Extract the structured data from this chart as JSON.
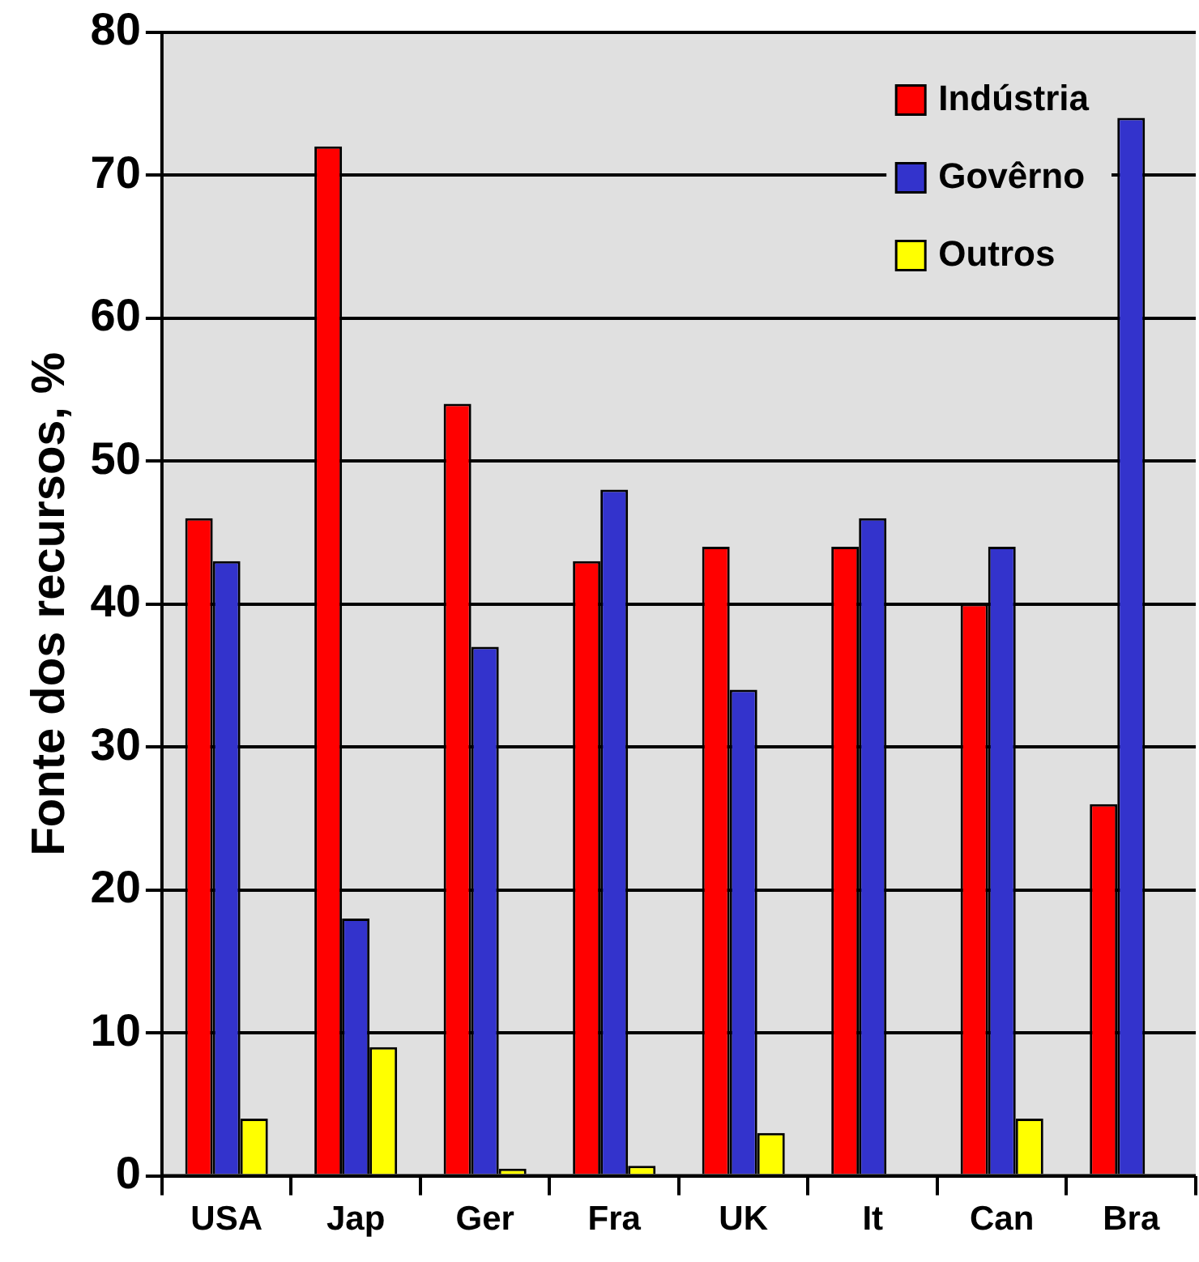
{
  "chart_data": {
    "type": "bar",
    "ylabel": "Fonte dos recursos, %",
    "categories": [
      "USA",
      "Jap",
      "Ger",
      "Fra",
      "UK",
      "It",
      "Can",
      "Bra"
    ],
    "series": [
      {
        "name": "Indústria",
        "color": "#ff0000",
        "values": [
          46,
          72,
          54,
          43,
          44,
          44,
          40,
          26
        ]
      },
      {
        "name": "Govêrno",
        "color": "#3333cc",
        "values": [
          43,
          18,
          37,
          48,
          34,
          46,
          44,
          74
        ]
      },
      {
        "name": "Outros",
        "color": "#ffff00",
        "values": [
          4,
          9,
          0.5,
          0.7,
          3,
          null,
          4,
          null
        ]
      }
    ],
    "ylim": [
      0,
      80
    ],
    "yticks": [
      0,
      10,
      20,
      30,
      40,
      50,
      60,
      70,
      80
    ],
    "grid": "y",
    "legend": "top right"
  }
}
